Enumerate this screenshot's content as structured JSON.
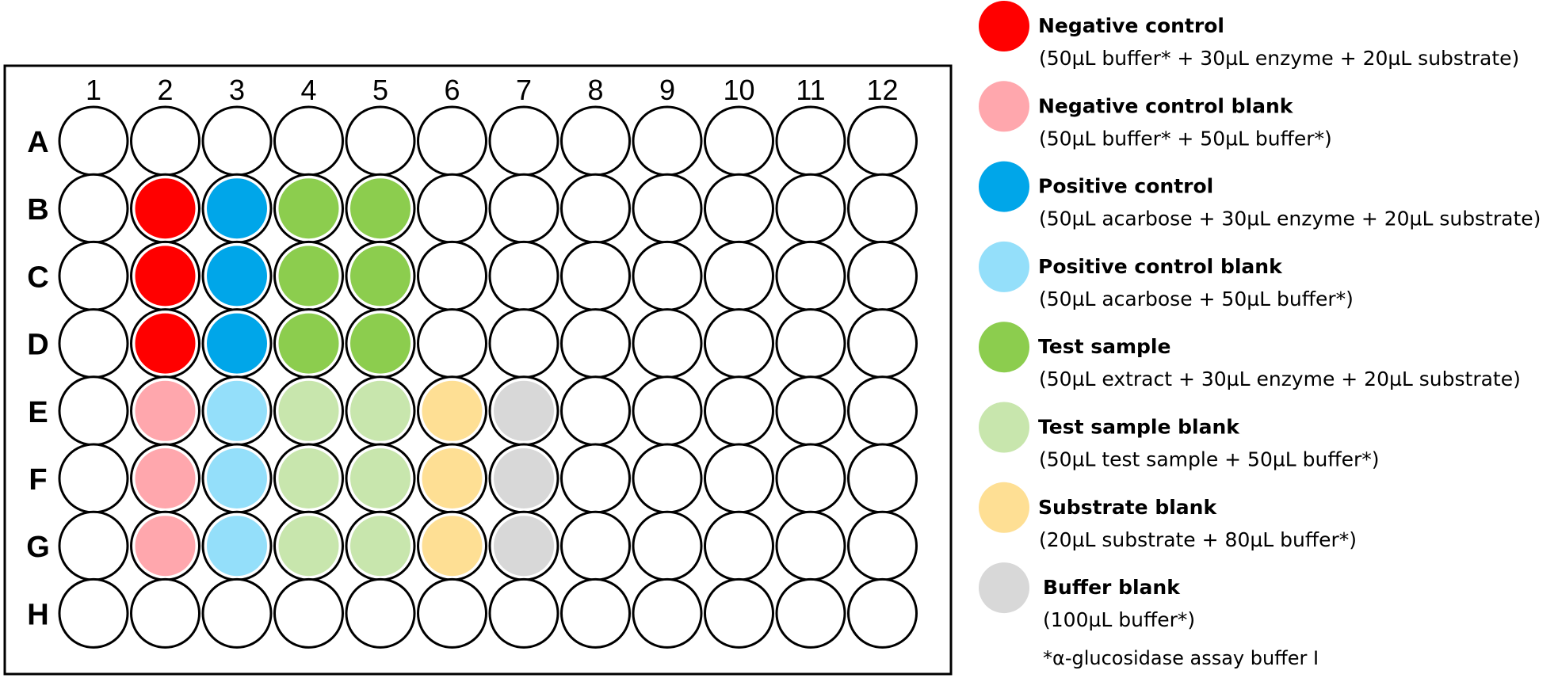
{
  "plate": {
    "columns": [
      "1",
      "2",
      "3",
      "4",
      "5",
      "6",
      "7",
      "8",
      "9",
      "10",
      "11",
      "12"
    ],
    "rows": [
      "A",
      "B",
      "C",
      "D",
      "E",
      "F",
      "G",
      "H"
    ]
  },
  "categories": {
    "negative_control": {
      "name": "Negative control",
      "desc": "(50µL buffer* + 30µL enzyme + 20µL substrate)",
      "color": "#ff0000"
    },
    "negative_control_blank": {
      "name": "Negative control blank",
      "desc": "(50µL buffer* + 50µL buffer*)",
      "color": "#ffa7ad"
    },
    "positive_control": {
      "name": "Positive control",
      "desc": "(50µL acarbose + 30µL enzyme + 20µL substrate)",
      "color": "#00a6e9"
    },
    "positive_control_blank": {
      "name": "Positive control blank",
      "desc": "(50µL acarbose + 50µL buffer*)",
      "color": "#94dffa"
    },
    "test_sample": {
      "name": "Test sample",
      "desc": "(50µL extract + 30µL enzyme + 20µL substrate)",
      "color": "#8ccd4e"
    },
    "test_sample_blank": {
      "name": "Test sample blank",
      "desc": "(50µL test sample + 50µL buffer*)",
      "color": "#c8e6ad"
    },
    "substrate_blank": {
      "name": "Substrate blank",
      "desc": "(20µL substrate + 80µL buffer*)",
      "color": "#fedf94"
    },
    "buffer_blank": {
      "name": "Buffer blank",
      "desc": "(100µL buffer*)",
      "color": "#d8d8d8"
    }
  },
  "legend_order": [
    "negative_control",
    "negative_control_blank",
    "positive_control",
    "positive_control_blank",
    "test_sample",
    "test_sample_blank",
    "substrate_blank",
    "buffer_blank"
  ],
  "wells": [
    {
      "row": "B",
      "col": "2",
      "type": "negative_control"
    },
    {
      "row": "C",
      "col": "2",
      "type": "negative_control"
    },
    {
      "row": "D",
      "col": "2",
      "type": "negative_control"
    },
    {
      "row": "B",
      "col": "3",
      "type": "positive_control"
    },
    {
      "row": "C",
      "col": "3",
      "type": "positive_control"
    },
    {
      "row": "D",
      "col": "3",
      "type": "positive_control"
    },
    {
      "row": "B",
      "col": "4",
      "type": "test_sample"
    },
    {
      "row": "C",
      "col": "4",
      "type": "test_sample"
    },
    {
      "row": "D",
      "col": "4",
      "type": "test_sample"
    },
    {
      "row": "B",
      "col": "5",
      "type": "test_sample"
    },
    {
      "row": "C",
      "col": "5",
      "type": "test_sample"
    },
    {
      "row": "D",
      "col": "5",
      "type": "test_sample"
    },
    {
      "row": "E",
      "col": "2",
      "type": "negative_control_blank"
    },
    {
      "row": "F",
      "col": "2",
      "type": "negative_control_blank"
    },
    {
      "row": "G",
      "col": "2",
      "type": "negative_control_blank"
    },
    {
      "row": "E",
      "col": "3",
      "type": "positive_control_blank"
    },
    {
      "row": "F",
      "col": "3",
      "type": "positive_control_blank"
    },
    {
      "row": "G",
      "col": "3",
      "type": "positive_control_blank"
    },
    {
      "row": "E",
      "col": "4",
      "type": "test_sample_blank"
    },
    {
      "row": "F",
      "col": "4",
      "type": "test_sample_blank"
    },
    {
      "row": "G",
      "col": "4",
      "type": "test_sample_blank"
    },
    {
      "row": "E",
      "col": "5",
      "type": "test_sample_blank"
    },
    {
      "row": "F",
      "col": "5",
      "type": "test_sample_blank"
    },
    {
      "row": "G",
      "col": "5",
      "type": "test_sample_blank"
    },
    {
      "row": "E",
      "col": "6",
      "type": "substrate_blank"
    },
    {
      "row": "F",
      "col": "6",
      "type": "substrate_blank"
    },
    {
      "row": "G",
      "col": "6",
      "type": "substrate_blank"
    },
    {
      "row": "E",
      "col": "7",
      "type": "buffer_blank"
    },
    {
      "row": "F",
      "col": "7",
      "type": "buffer_blank"
    },
    {
      "row": "G",
      "col": "7",
      "type": "buffer_blank"
    }
  ],
  "footnote": "*α-glucosidase assay buffer I"
}
